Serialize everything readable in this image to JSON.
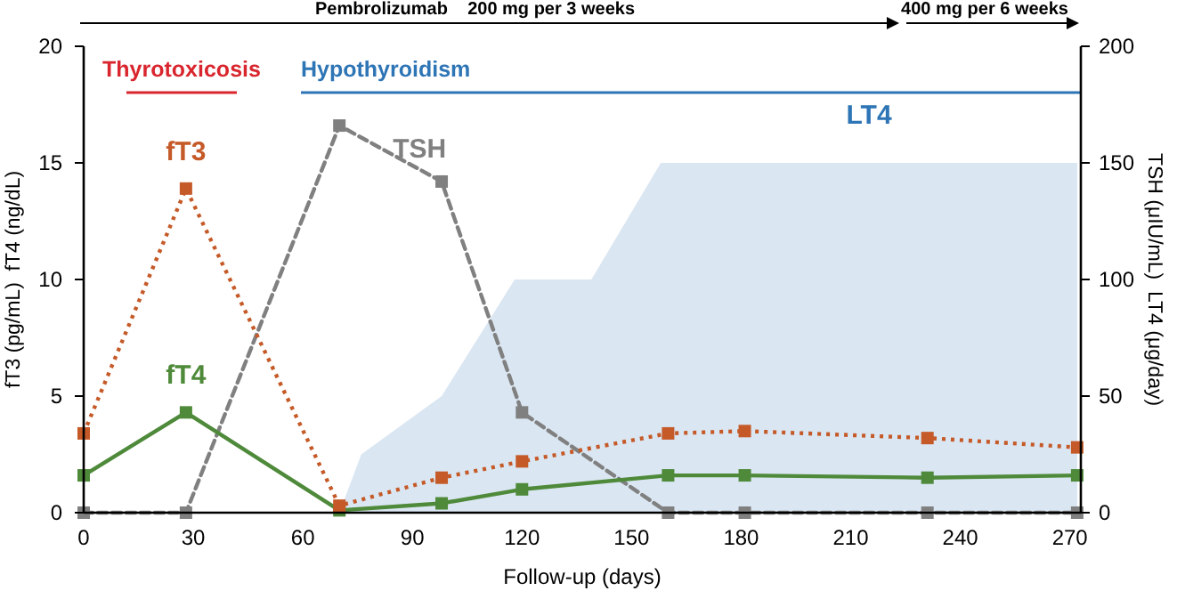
{
  "chart_data": {
    "type": "line",
    "xlabel": "Follow-up (days)",
    "ylabel": "fT3 (pg/mL)  fT4 (ng/dL)",
    "y2label": "TSH (μIU/mL)  LT4 (μg/day)",
    "xlim": [
      0,
      273
    ],
    "xticks": [
      0,
      30,
      60,
      90,
      120,
      150,
      180,
      210,
      240,
      270
    ],
    "ylim": [
      0,
      20
    ],
    "yticks": [
      0,
      5,
      10,
      15,
      20
    ],
    "y2lim": [
      0,
      200
    ],
    "y2ticks": [
      0,
      50,
      100,
      150,
      200
    ],
    "grid": false,
    "series": [
      {
        "name": "LT4",
        "type": "area",
        "axis": "y2",
        "color": "#dae6f2",
        "x": [
          70,
          76,
          98,
          118,
          139,
          158,
          272
        ],
        "values": [
          0,
          25,
          50,
          100,
          100,
          150,
          150
        ]
      },
      {
        "name": "TSH",
        "type": "line",
        "axis": "y2",
        "color": "#808080",
        "line_style": "dashed",
        "marker": "square",
        "x": [
          0,
          28,
          70,
          98,
          120,
          160,
          181,
          231,
          272
        ],
        "values": [
          0,
          0,
          166,
          142,
          43,
          0,
          0,
          0,
          0
        ]
      },
      {
        "name": "fT4",
        "color": "#4e8a3a",
        "line_style": "solid",
        "marker": "square",
        "x": [
          0,
          28,
          70,
          98,
          120,
          160,
          181,
          231,
          272
        ],
        "values": [
          1.6,
          4.3,
          0.1,
          0.4,
          1.0,
          1.6,
          1.6,
          1.5,
          1.6
        ]
      },
      {
        "name": "fT3",
        "color": "#c55a28",
        "line_style": "dotted",
        "marker": "square",
        "x": [
          0,
          28,
          70,
          98,
          120,
          160,
          181,
          231,
          272
        ],
        "values": [
          3.4,
          13.9,
          0.3,
          1.5,
          2.2,
          3.4,
          3.5,
          3.2,
          2.8
        ]
      }
    ],
    "annotations": [
      "Pembrolizumab    200 mg per 3 weeks",
      "400 mg per 6 weeks",
      "Thyrotoxicosis",
      "Hypothyroidism"
    ]
  }
}
